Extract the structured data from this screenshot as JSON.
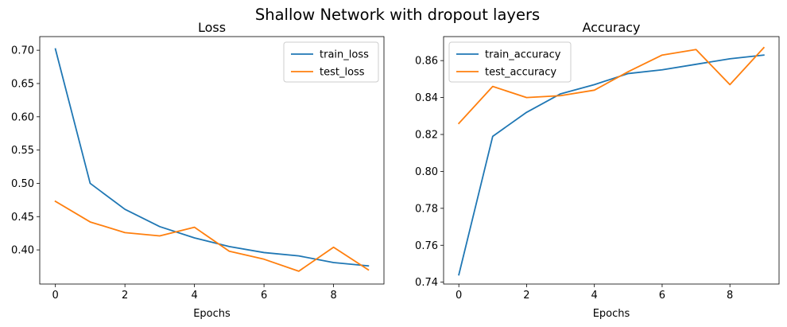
{
  "suptitle": "Shallow Network with dropout layers",
  "chart_data": [
    {
      "type": "line",
      "title": "Loss",
      "xlabel": "Epochs",
      "ylabel": "",
      "x": [
        0,
        1,
        2,
        3,
        4,
        5,
        6,
        7,
        8,
        9
      ],
      "xlim": [
        -0.45,
        9.45
      ],
      "ylim": [
        0.3487,
        0.7205
      ],
      "xticks": [
        0,
        2,
        4,
        6,
        8
      ],
      "xtick_labels": [
        "0",
        "2",
        "4",
        "6",
        "8"
      ],
      "yticks": [
        0.4,
        0.45,
        0.5,
        0.55,
        0.6,
        0.65,
        0.7
      ],
      "ytick_labels": [
        "0.40",
        "0.45",
        "0.50",
        "0.55",
        "0.60",
        "0.65",
        "0.70"
      ],
      "legend_position": "top-right",
      "series": [
        {
          "name": "train_loss",
          "color": "#1f77b4",
          "values": [
            0.702,
            0.5,
            0.461,
            0.435,
            0.418,
            0.405,
            0.396,
            0.391,
            0.381,
            0.376
          ]
        },
        {
          "name": "test_loss",
          "color": "#ff7f0e",
          "values": [
            0.473,
            0.442,
            0.426,
            0.421,
            0.434,
            0.398,
            0.386,
            0.368,
            0.404,
            0.37
          ]
        }
      ]
    },
    {
      "type": "line",
      "title": "Accuracy",
      "xlabel": "Epochs",
      "ylabel": "",
      "x": [
        0,
        1,
        2,
        3,
        4,
        5,
        6,
        7,
        8,
        9
      ],
      "xlim": [
        -0.45,
        9.45
      ],
      "ylim": [
        0.739,
        0.873
      ],
      "xticks": [
        0,
        2,
        4,
        6,
        8
      ],
      "xtick_labels": [
        "0",
        "2",
        "4",
        "6",
        "8"
      ],
      "yticks": [
        0.74,
        0.76,
        0.78,
        0.8,
        0.82,
        0.84,
        0.86
      ],
      "ytick_labels": [
        "0.74",
        "0.76",
        "0.78",
        "0.80",
        "0.82",
        "0.84",
        "0.86"
      ],
      "legend_position": "top-left",
      "series": [
        {
          "name": "train_accuracy",
          "color": "#1f77b4",
          "values": [
            0.744,
            0.819,
            0.832,
            0.842,
            0.847,
            0.853,
            0.855,
            0.858,
            0.861,
            0.863
          ]
        },
        {
          "name": "test_accuracy",
          "color": "#ff7f0e",
          "values": [
            0.826,
            0.846,
            0.84,
            0.841,
            0.844,
            0.854,
            0.863,
            0.866,
            0.847,
            0.867
          ]
        }
      ]
    }
  ]
}
